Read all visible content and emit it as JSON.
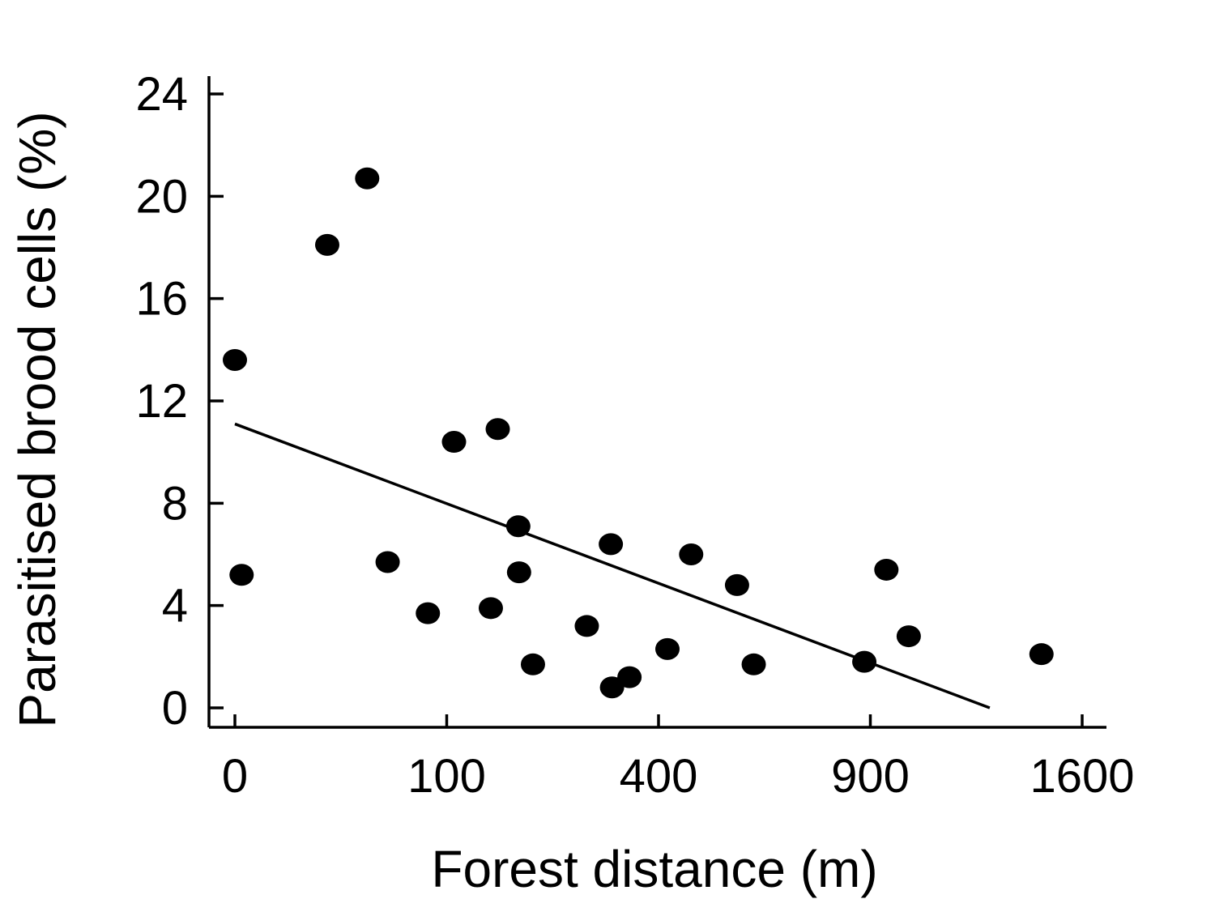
{
  "chart_data": {
    "type": "scatter",
    "title": "",
    "xlabel": "Forest distance (m)",
    "ylabel": "Parasitised brood cells (%)",
    "x_scale": "sqrt",
    "xlim": [
      0,
      1600
    ],
    "ylim": [
      0,
      24
    ],
    "x_ticks": [
      {
        "value": 0,
        "label": "0"
      },
      {
        "value": 100,
        "label": "100"
      },
      {
        "value": 400,
        "label": "400"
      },
      {
        "value": 900,
        "label": "900"
      },
      {
        "value": 1600,
        "label": "1600"
      }
    ],
    "y_ticks": [
      {
        "value": 0,
        "label": "0"
      },
      {
        "value": 4,
        "label": "4"
      },
      {
        "value": 8,
        "label": "8"
      },
      {
        "value": 12,
        "label": "12"
      },
      {
        "value": 16,
        "label": "16"
      },
      {
        "value": 20,
        "label": "20"
      },
      {
        "value": 24,
        "label": "24"
      }
    ],
    "grid": false,
    "legend": "none",
    "points_color": "#000000",
    "series": [
      {
        "points": [
          {
            "x": 0,
            "y": 13.6
          },
          {
            "x": 0.1,
            "y": 5.2
          },
          {
            "x": 19,
            "y": 18.1
          },
          {
            "x": 39,
            "y": 20.7
          },
          {
            "x": 52,
            "y": 5.7
          },
          {
            "x": 83,
            "y": 3.7
          },
          {
            "x": 107,
            "y": 10.4
          },
          {
            "x": 146,
            "y": 3.9
          },
          {
            "x": 154,
            "y": 10.9
          },
          {
            "x": 179,
            "y": 7.1
          },
          {
            "x": 180,
            "y": 5.3
          },
          {
            "x": 198,
            "y": 1.7
          },
          {
            "x": 276,
            "y": 3.2
          },
          {
            "x": 315,
            "y": 6.4
          },
          {
            "x": 317,
            "y": 0.8
          },
          {
            "x": 347,
            "y": 1.2
          },
          {
            "x": 417,
            "y": 2.3
          },
          {
            "x": 464,
            "y": 6.0
          },
          {
            "x": 562,
            "y": 4.8
          },
          {
            "x": 600,
            "y": 1.7
          },
          {
            "x": 883,
            "y": 1.8
          },
          {
            "x": 946,
            "y": 5.4
          },
          {
            "x": 1012,
            "y": 2.8
          },
          {
            "x": 1450,
            "y": 2.1
          }
        ]
      }
    ],
    "trendline": {
      "x": [
        0,
        1270
      ],
      "y": [
        11.1,
        0.0
      ]
    }
  }
}
